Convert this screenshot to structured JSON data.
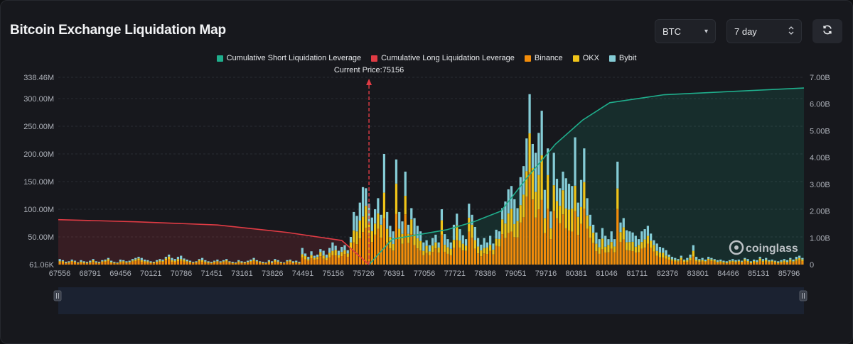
{
  "header": {
    "title": "Bitcoin Exchange Liquidation Map",
    "symbol_select": "BTC",
    "range_select": "7 day"
  },
  "icons": {
    "symbol_arrow": "caret-down-icon",
    "range_arrow": "updown-icon",
    "refresh": "refresh-icon"
  },
  "colors": {
    "short": "#1fae8c",
    "long": "#e03b44",
    "binance": "#f28c0a",
    "okx": "#f0c419",
    "bybit": "#85ccd6"
  },
  "watermark": "coinglass",
  "chart_data": {
    "type": "bar",
    "title": "",
    "current_price_label": "Current Price:75156",
    "current_price": 75156,
    "legend": [
      "Cumulative Short Liquidation Leverage",
      "Cumulative Long Liquidation Leverage",
      "Binance",
      "OKX",
      "Bybit"
    ],
    "x_tick_labels": [
      "67556",
      "68791",
      "69456",
      "70121",
      "70786",
      "71451",
      "73161",
      "73826",
      "74491",
      "75156",
      "75726",
      "76391",
      "77056",
      "77721",
      "78386",
      "79051",
      "79716",
      "80381",
      "81046",
      "81711",
      "82376",
      "83801",
      "84466",
      "85131",
      "85796"
    ],
    "y_left_tick_labels": [
      "338.46M",
      "300.00M",
      "250.00M",
      "200.00M",
      "150.00M",
      "100.00M",
      "50.00M",
      "61.06K"
    ],
    "y_left_range": [
      0,
      338.46
    ],
    "y_left_unit": "M",
    "y_right_tick_labels": [
      "7.00B",
      "6.00B",
      "5.00B",
      "4.00B",
      "3.00B",
      "2.00B",
      "1.00B",
      "0"
    ],
    "y_right_range": [
      0,
      7
    ],
    "y_right_unit": "B",
    "series_stacked": [
      "Binance",
      "OKX",
      "Bybit"
    ],
    "bar_x_range": [
      67556,
      85796
    ],
    "bars_total_M": [
      10,
      8,
      5,
      6,
      9,
      7,
      4,
      8,
      6,
      5,
      7,
      10,
      6,
      5,
      8,
      9,
      12,
      7,
      5,
      4,
      9,
      8,
      6,
      7,
      10,
      12,
      14,
      12,
      9,
      8,
      6,
      5,
      8,
      10,
      9,
      14,
      18,
      12,
      10,
      14,
      16,
      11,
      9,
      7,
      5,
      6,
      10,
      12,
      8,
      6,
      5,
      7,
      9,
      6,
      8,
      10,
      6,
      5,
      4,
      8,
      6,
      5,
      7,
      9,
      12,
      8,
      6,
      5,
      4,
      8,
      6,
      10,
      8,
      5,
      4,
      8,
      9,
      6,
      7,
      5,
      30,
      20,
      14,
      24,
      16,
      18,
      28,
      25,
      18,
      30,
      40,
      34,
      25,
      32,
      35,
      26,
      50,
      95,
      88,
      112,
      140,
      138,
      110,
      85,
      100,
      120,
      90,
      200,
      95,
      70,
      60,
      190,
      95,
      78,
      168,
      72,
      102,
      84,
      70,
      60,
      40,
      44,
      35,
      48,
      54,
      40,
      100,
      55,
      46,
      40,
      72,
      92,
      64,
      53,
      46,
      110,
      90,
      68,
      48,
      36,
      48,
      40,
      52,
      38,
      63,
      60,
      102,
      114,
      136,
      142,
      118,
      102,
      158,
      178,
      228,
      308,
      218,
      202,
      238,
      278,
      135,
      210,
      96,
      202,
      155,
      138,
      168,
      156,
      146,
      142,
      230,
      112,
      153,
      210,
      120,
      90,
      72,
      58,
      46,
      66,
      52,
      46,
      60,
      46,
      186,
      76,
      84,
      62,
      60,
      58,
      52,
      46,
      60,
      64,
      70,
      56,
      44,
      38,
      32,
      30,
      26,
      18,
      14,
      12,
      10,
      16,
      9,
      12,
      18,
      35,
      14,
      10,
      12,
      9,
      14,
      12,
      10,
      8,
      9,
      7,
      6,
      8,
      10,
      8,
      9,
      7,
      12,
      10,
      6,
      9,
      8,
      14,
      10,
      12,
      8,
      9,
      7,
      6,
      8,
      10,
      8,
      12,
      9,
      14,
      16,
      12
    ],
    "cumulative_long_B": [
      [
        67556,
        1.68
      ],
      [
        69456,
        1.6
      ],
      [
        71451,
        1.48
      ],
      [
        73161,
        1.2
      ],
      [
        74491,
        0.9
      ],
      [
        75156,
        0
      ]
    ],
    "cumulative_short_B": [
      [
        75156,
        0
      ],
      [
        75726,
        0.95
      ],
      [
        77056,
        1.3
      ],
      [
        77721,
        1.6
      ],
      [
        78386,
        2.0
      ],
      [
        79051,
        3.3
      ],
      [
        79716,
        4.5
      ],
      [
        80381,
        5.4
      ],
      [
        81046,
        6.05
      ],
      [
        81711,
        6.2
      ],
      [
        82376,
        6.35
      ],
      [
        85796,
        6.6
      ]
    ]
  }
}
